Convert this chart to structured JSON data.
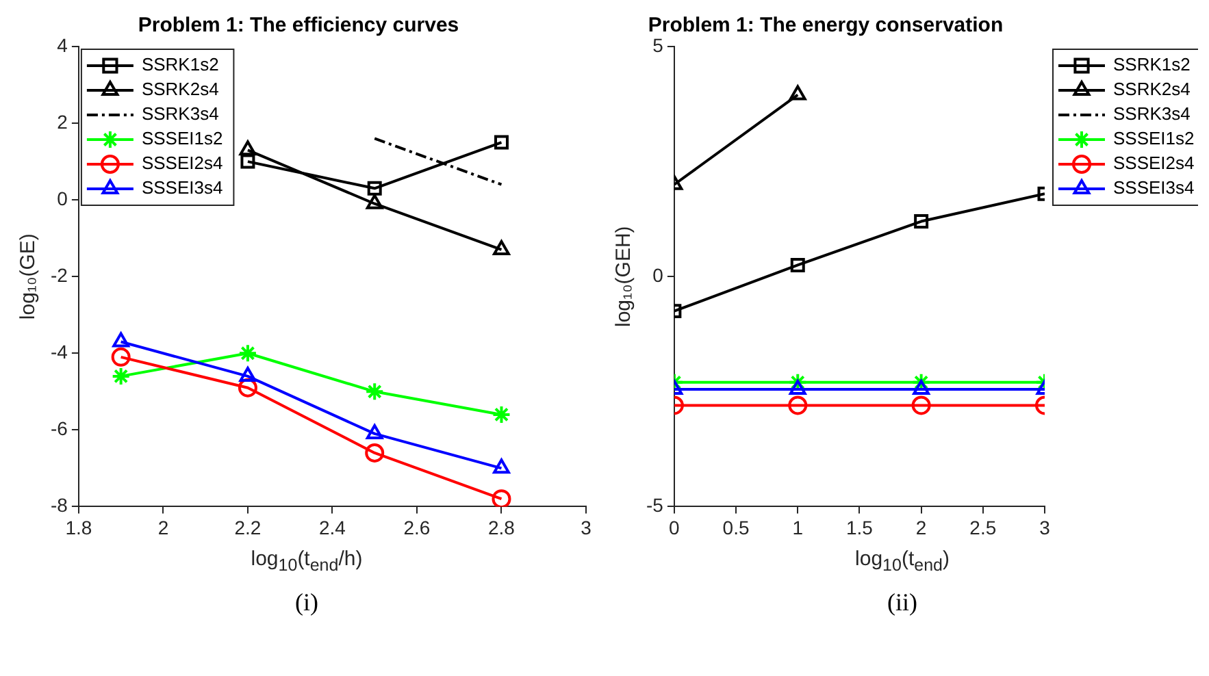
{
  "chart_data": [
    {
      "type": "line",
      "title": "Problem 1: The efficiency curves",
      "xlabel": "log$_{10}$(t$_{end}$/h)",
      "ylabel": "log₁₀(GE)",
      "x": [
        1.9,
        2.2,
        2.5,
        2.8
      ],
      "xlim": [
        1.8,
        3
      ],
      "xticks": [
        1.8,
        2,
        2.2,
        2.4,
        2.6,
        2.8,
        3
      ],
      "ylim": [
        -8,
        4
      ],
      "yticks": [
        -8,
        -6,
        -4,
        -2,
        0,
        2,
        4
      ],
      "grid": false,
      "legend": "top left",
      "annotations": [
        "(i)"
      ],
      "series": [
        {
          "name": "SSRK1s2",
          "color": "#000000",
          "marker": "square",
          "line_style": "solid",
          "values": [
            null,
            1.0,
            0.3,
            1.5
          ]
        },
        {
          "name": "SSRK2s4",
          "color": "#000000",
          "marker": "triangle",
          "line_style": "solid",
          "values": [
            null,
            1.3,
            -0.1,
            -1.3
          ]
        },
        {
          "name": "SSRK3s4",
          "color": "#000000",
          "marker": "none",
          "line_style": "dashed",
          "values": [
            null,
            null,
            1.6,
            0.4
          ]
        },
        {
          "name": "SSSEI1s2",
          "color": "#00ff00",
          "marker": "cross",
          "line_style": "solid",
          "values": [
            -4.6,
            -4.0,
            -5.0,
            -5.6
          ]
        },
        {
          "name": "SSSEI2s4",
          "color": "#ff0000",
          "marker": "circle",
          "line_style": "solid",
          "values": [
            -4.1,
            -4.9,
            -6.6,
            -7.8
          ]
        },
        {
          "name": "SSSEI3s4",
          "color": "#0000ff",
          "marker": "triangle",
          "line_style": "solid",
          "values": [
            -3.7,
            -4.6,
            -6.1,
            -7.0
          ]
        }
      ]
    },
    {
      "type": "line",
      "title": "Problem 1: The energy conservation",
      "xlabel": "log$_{10}$(t$_{end}$)",
      "ylabel": "log₁₀(GEH)",
      "x": [
        0,
        1,
        2,
        3
      ],
      "xlim": [
        0,
        3
      ],
      "xticks": [
        0,
        0.5,
        1,
        1.5,
        2,
        2.5,
        3
      ],
      "ylim": [
        -5,
        5
      ],
      "yticks": [
        -5,
        0,
        5
      ],
      "grid": false,
      "legend": "top right",
      "annotations": [
        "(ii)"
      ],
      "series": [
        {
          "name": "SSRK1s2",
          "color": "#000000",
          "marker": "square",
          "line_style": "solid",
          "values": [
            -0.75,
            0.25,
            1.2,
            1.8
          ]
        },
        {
          "name": "SSRK2s4",
          "color": "#000000",
          "marker": "triangle",
          "line_style": "solid",
          "values": [
            2.0,
            3.95,
            null,
            null
          ]
        },
        {
          "name": "SSRK3s4",
          "color": "#000000",
          "marker": "none",
          "line_style": "dashed",
          "values": [
            null,
            null,
            null,
            null
          ]
        },
        {
          "name": "SSSEI1s2",
          "color": "#00ff00",
          "marker": "cross",
          "line_style": "solid",
          "values": [
            -2.3,
            -2.3,
            -2.3,
            -2.3
          ]
        },
        {
          "name": "SSSEI2s4",
          "color": "#ff0000",
          "marker": "circle",
          "line_style": "solid",
          "values": [
            -2.8,
            -2.8,
            -2.8,
            -2.8
          ]
        },
        {
          "name": "SSSEI3s4",
          "color": "#0000ff",
          "marker": "triangle",
          "line_style": "solid",
          "values": [
            -2.45,
            -2.45,
            -2.45,
            -2.45
          ]
        }
      ]
    }
  ]
}
